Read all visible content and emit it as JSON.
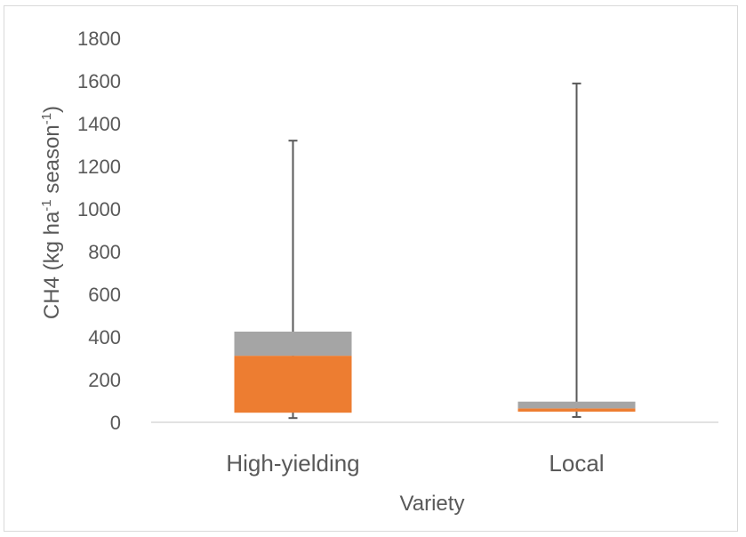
{
  "chart_data": {
    "type": "boxplot",
    "title": "",
    "xlabel": "Variety",
    "ylabel": {
      "prefix": "CH4 (kg ha",
      "sup1": "-1",
      "middle": " season",
      "sup2": "-1",
      "suffix": ")"
    },
    "ylim": [
      0,
      1800
    ],
    "yticks": [
      0,
      200,
      400,
      600,
      800,
      1000,
      1200,
      1400,
      1600,
      1800
    ],
    "grid": false,
    "legend": "none",
    "categories": [
      "High-yielding",
      "Local"
    ],
    "boxes": [
      {
        "category": "High-yielding",
        "min": 20,
        "q1": 45,
        "median": 312,
        "q3": 425,
        "max": 1320
      },
      {
        "category": "Local",
        "min": 25,
        "q1": 50,
        "median": 65,
        "q3": 97,
        "max": 1588
      }
    ],
    "colors": {
      "lower_box": "#ED7D31",
      "upper_box": "#A5A5A5",
      "whisker": "#595959",
      "axis": "#D9D9D9",
      "text": "#595959"
    }
  }
}
